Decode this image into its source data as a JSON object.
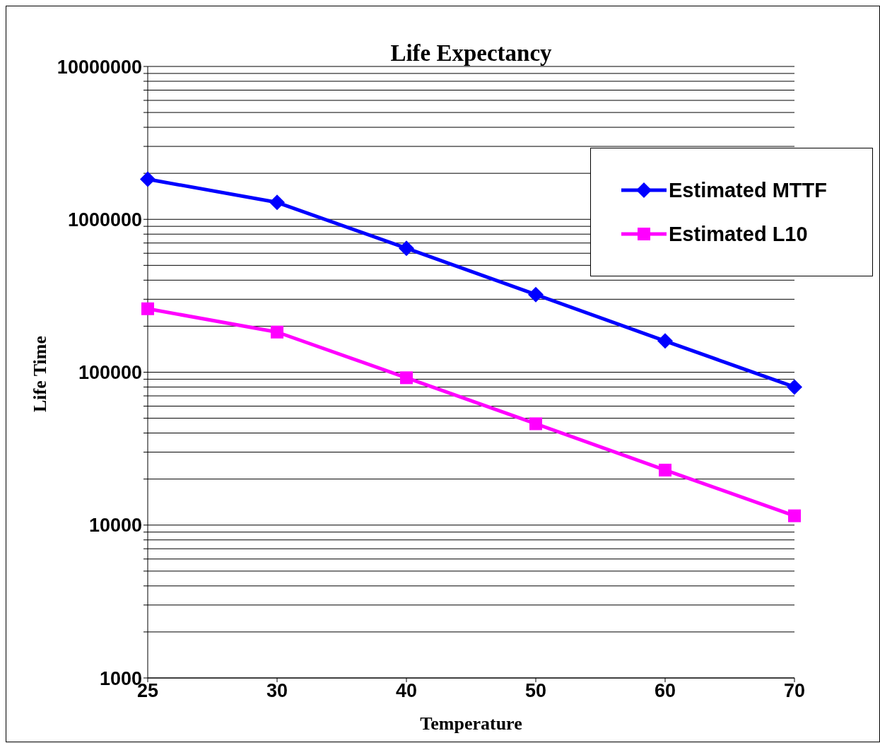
{
  "chart_data": {
    "type": "line",
    "title": "Life Expectancy",
    "xlabel": "Temperature",
    "ylabel": "Life Time",
    "categories": [
      "25",
      "30",
      "40",
      "50",
      "60",
      "70"
    ],
    "series": [
      {
        "name": "Estimated MTTF",
        "color": "#0000ff",
        "marker": "diamond",
        "values": [
          1830000,
          1290000,
          647000,
          322000,
          160000,
          80000
        ]
      },
      {
        "name": "Estimated L10",
        "color": "#ff00ff",
        "marker": "square",
        "values": [
          260000,
          183000,
          92000,
          46000,
          22900,
          11500
        ]
      }
    ],
    "log": "y",
    "ylim": [
      1000,
      10000000
    ],
    "yticks": [
      1000,
      {
        "value": 2000,
        "label": null
      },
      {
        "value": 3000,
        "label": null
      },
      {
        "value": 4000,
        "label": null
      },
      {
        "value": 5000,
        "label": null
      },
      {
        "value": 6000,
        "label": null
      },
      {
        "value": 7000,
        "label": null
      },
      {
        "value": 8000,
        "label": null
      },
      {
        "value": 9000,
        "label": null
      },
      10000,
      {
        "value": 20000,
        "label": null
      },
      {
        "value": 30000,
        "label": null
      },
      {
        "value": 40000,
        "label": null
      },
      {
        "value": 50000,
        "label": null
      },
      {
        "value": 60000,
        "label": null
      },
      {
        "value": 70000,
        "label": null
      },
      {
        "value": 80000,
        "label": null
      },
      {
        "value": 90000,
        "label": null
      },
      100000,
      {
        "value": 200000,
        "label": null
      },
      {
        "value": 300000,
        "label": null
      },
      {
        "value": 400000,
        "label": null
      },
      {
        "value": 500000,
        "label": null
      },
      {
        "value": 600000,
        "label": null
      },
      {
        "value": 700000,
        "label": null
      },
      {
        "value": 800000,
        "label": null
      },
      {
        "value": 900000,
        "label": null
      },
      1000000,
      {
        "value": 2000000,
        "label": null
      },
      {
        "value": 3000000,
        "label": null
      },
      {
        "value": 4000000,
        "label": null
      },
      {
        "value": 5000000,
        "label": null
      },
      {
        "value": 6000000,
        "label": null
      },
      {
        "value": 7000000,
        "label": null
      },
      {
        "value": 8000000,
        "label": null
      },
      {
        "value": 9000000,
        "label": null
      },
      10000000
    ],
    "grid": "y",
    "legend": "top right",
    "line_style": "solid"
  }
}
